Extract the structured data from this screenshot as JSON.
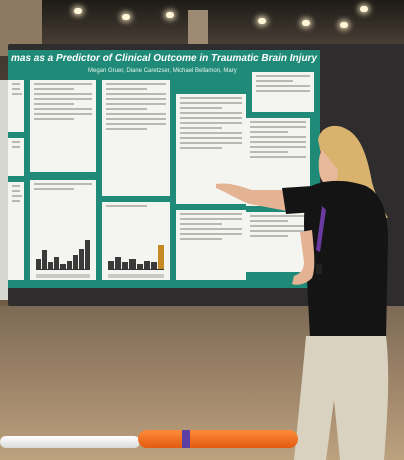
{
  "poster": {
    "title": "mas as a Predictor of Clinical Outcome in Traumatic Brain Injury",
    "authors": "Megan Gruer, Diane Caretzser, Michael Bellamon, Mary McCarthy, James F. Olson"
  },
  "colors": {
    "poster_background": "#1f8a78",
    "panel_background": "#f4f4f0",
    "board_frame": "#2e2c2c",
    "orange_tube": "#e2621a",
    "shirt": "#141414",
    "pants": "#d9d2c0",
    "hair": "#d9b36d"
  },
  "icons": {
    "ceiling_lights": "light-icon"
  }
}
